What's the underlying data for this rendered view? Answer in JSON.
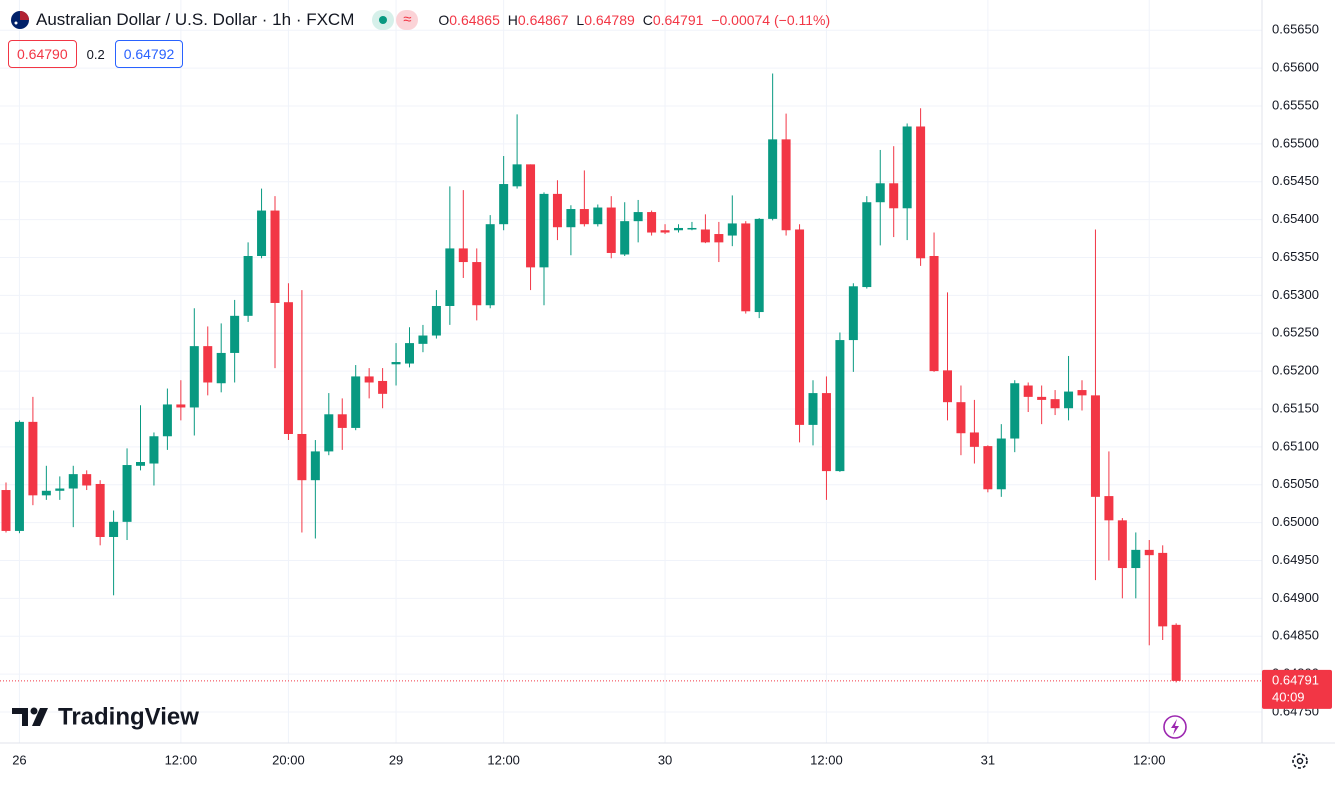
{
  "chart_data": {
    "type": "candlestick",
    "title": "Australian Dollar / U.S. Dollar · 1h · FXCM",
    "ohlc_labels": [
      "O",
      "H",
      "L",
      "C"
    ],
    "change": "−0.00074 (−0.11%)",
    "bid": "0.64790",
    "spread": 0.2,
    "ask": "0.64792",
    "countdown": "40:09",
    "watermark": "TradingView",
    "up_color": "#089981",
    "down_color": "#f23645",
    "grid": true,
    "categories": [
      null,
      "26",
      null,
      null,
      null,
      null,
      null,
      null,
      null,
      null,
      null,
      null,
      null,
      "12:00",
      null,
      null,
      null,
      null,
      null,
      null,
      null,
      "20:00",
      null,
      null,
      null,
      null,
      null,
      null,
      null,
      "29",
      null,
      null,
      null,
      null,
      null,
      null,
      null,
      "12:00",
      null,
      null,
      null,
      null,
      null,
      null,
      null,
      null,
      null,
      null,
      null,
      "30",
      null,
      null,
      null,
      null,
      null,
      null,
      null,
      null,
      null,
      null,
      null,
      "12:00",
      null,
      null,
      null,
      null,
      null,
      null,
      null,
      null,
      null,
      null,
      null,
      "31",
      null,
      null,
      null,
      null,
      null,
      null,
      null,
      null,
      null,
      null,
      null,
      "12:00",
      null,
      null
    ],
    "open": [
      0.65043,
      0.64989,
      0.65133,
      0.65036,
      0.65042,
      0.65045,
      0.65064,
      0.65051,
      0.64981,
      0.65001,
      0.65075,
      0.65078,
      0.65114,
      0.65156,
      0.65152,
      0.65233,
      0.65184,
      0.65224,
      0.65273,
      0.65352,
      0.65412,
      0.65291,
      0.65117,
      0.65056,
      0.65094,
      0.65143,
      0.65125,
      0.65193,
      0.65187,
      0.65209,
      0.6521,
      0.65236,
      0.65247,
      0.65286,
      0.65362,
      0.65344,
      0.65287,
      0.65394,
      0.65444,
      0.65473,
      0.65337,
      0.65434,
      0.6539,
      0.65414,
      0.65394,
      0.65416,
      0.65354,
      0.65398,
      0.6541,
      0.65386,
      0.65386,
      0.65387,
      0.65387,
      0.65381,
      0.65379,
      0.65395,
      0.65278,
      0.65401,
      0.65506,
      0.65387,
      0.65129,
      0.65171,
      0.65068,
      0.65241,
      0.65311,
      0.65423,
      0.65448,
      0.65415,
      0.65523,
      0.65352,
      0.65201,
      0.65159,
      0.65119,
      0.65101,
      0.65044,
      0.65111,
      0.65181,
      0.65166,
      0.65163,
      0.65151,
      0.65175,
      0.65168,
      0.65035,
      0.65003,
      0.6494,
      0.64964,
      0.6496,
      0.64865
    ],
    "high": [
      0.65053,
      0.65135,
      0.65166,
      0.65075,
      0.65061,
      0.65075,
      0.65069,
      0.65056,
      0.65016,
      0.65098,
      0.65155,
      0.65119,
      0.65177,
      0.65188,
      0.65283,
      0.65259,
      0.65263,
      0.65294,
      0.6537,
      0.65441,
      0.65431,
      0.65316,
      0.65307,
      0.65109,
      0.65171,
      0.65164,
      0.65208,
      0.65204,
      0.65204,
      0.65237,
      0.65258,
      0.65261,
      0.65307,
      0.65444,
      0.65439,
      0.65362,
      0.65406,
      0.65484,
      0.65539,
      0.65473,
      0.65436,
      0.65452,
      0.65419,
      0.65465,
      0.6542,
      0.65431,
      0.65423,
      0.65426,
      0.65412,
      0.65394,
      0.65394,
      0.65397,
      0.65407,
      0.65397,
      0.65432,
      0.65398,
      0.65402,
      0.65593,
      0.6554,
      0.65394,
      0.65188,
      0.65193,
      0.65251,
      0.65316,
      0.65431,
      0.65492,
      0.65497,
      0.65527,
      0.65547,
      0.65383,
      0.65304,
      0.65181,
      0.65162,
      0.65102,
      0.6513,
      0.65188,
      0.65185,
      0.65181,
      0.65175,
      0.6522,
      0.65188,
      0.65387,
      0.65094,
      0.65006,
      0.64987,
      0.64977,
      0.6497,
      0.64867
    ],
    "low": [
      0.64987,
      0.64986,
      0.65023,
      0.6503,
      0.6503,
      0.64994,
      0.65043,
      0.6497,
      0.64904,
      0.64977,
      0.65069,
      0.65049,
      0.65096,
      0.65135,
      0.65115,
      0.65168,
      0.65172,
      0.65185,
      0.65265,
      0.65349,
      0.65204,
      0.65109,
      0.64987,
      0.64979,
      0.65089,
      0.65096,
      0.65122,
      0.65164,
      0.65151,
      0.65181,
      0.65205,
      0.65225,
      0.65243,
      0.65261,
      0.65323,
      0.65267,
      0.65283,
      0.65386,
      0.65441,
      0.65307,
      0.65287,
      0.65373,
      0.65353,
      0.65391,
      0.65391,
      0.65349,
      0.65352,
      0.6537,
      0.65379,
      0.65381,
      0.65383,
      0.65386,
      0.65369,
      0.65344,
      0.65365,
      0.65276,
      0.6527,
      0.65399,
      0.65379,
      0.65106,
      0.65102,
      0.6503,
      0.65067,
      0.65199,
      0.65309,
      0.65366,
      0.65377,
      0.65373,
      0.65339,
      0.65199,
      0.65135,
      0.65089,
      0.65078,
      0.6504,
      0.65034,
      0.65093,
      0.65146,
      0.6513,
      0.65142,
      0.65135,
      0.65148,
      0.64924,
      0.6495,
      0.649,
      0.649,
      0.64838,
      0.64845,
      0.64789
    ],
    "close": [
      0.64989,
      0.65133,
      0.65036,
      0.65042,
      0.65045,
      0.65064,
      0.65049,
      0.64981,
      0.65001,
      0.65076,
      0.6508,
      0.65114,
      0.65156,
      0.65152,
      0.65233,
      0.65185,
      0.65224,
      0.65273,
      0.65352,
      0.65412,
      0.6529,
      0.65117,
      0.65056,
      0.65094,
      0.65143,
      0.65125,
      0.65193,
      0.65185,
      0.6517,
      0.65212,
      0.65237,
      0.65247,
      0.65286,
      0.65362,
      0.65344,
      0.65287,
      0.65394,
      0.65447,
      0.65473,
      0.65337,
      0.65434,
      0.6539,
      0.65414,
      0.65394,
      0.65416,
      0.65356,
      0.65398,
      0.6541,
      0.65383,
      0.65383,
      0.65389,
      0.65389,
      0.6537,
      0.6537,
      0.65395,
      0.65279,
      0.65401,
      0.65506,
      0.65386,
      0.65129,
      0.65171,
      0.65068,
      0.65241,
      0.65312,
      0.65423,
      0.65448,
      0.65415,
      0.65523,
      0.65349,
      0.652,
      0.65159,
      0.65118,
      0.651,
      0.65044,
      0.65111,
      0.65184,
      0.65166,
      0.65162,
      0.65151,
      0.65173,
      0.65168,
      0.65034,
      0.65003,
      0.6494,
      0.64964,
      0.64957,
      0.64863,
      0.64791
    ],
    "ylim": [
      0.64709,
      0.6569
    ],
    "yticks": [
      {
        "value": 0.6475,
        "label": "0.64750"
      },
      {
        "value": 0.648,
        "label": "0.64800"
      },
      {
        "value": 0.6485,
        "label": "0.64850"
      },
      {
        "value": 0.649,
        "label": "0.64900"
      },
      {
        "value": 0.6495,
        "label": "0.64950"
      },
      {
        "value": 0.65,
        "label": "0.65000"
      },
      {
        "value": 0.6505,
        "label": "0.65050"
      },
      {
        "value": 0.651,
        "label": "0.65100"
      },
      {
        "value": 0.6515,
        "label": "0.65150"
      },
      {
        "value": 0.652,
        "label": "0.65200"
      },
      {
        "value": 0.6525,
        "label": "0.65250"
      },
      {
        "value": 0.653,
        "label": "0.65300"
      },
      {
        "value": 0.6535,
        "label": "0.65350"
      },
      {
        "value": 0.654,
        "label": "0.65400"
      },
      {
        "value": 0.6545,
        "label": "0.65450"
      },
      {
        "value": 0.655,
        "label": "0.65500"
      },
      {
        "value": 0.6555,
        "label": "0.65550"
      },
      {
        "value": 0.656,
        "label": "0.65600"
      },
      {
        "value": 0.6565,
        "label": "0.65650"
      }
    ]
  }
}
